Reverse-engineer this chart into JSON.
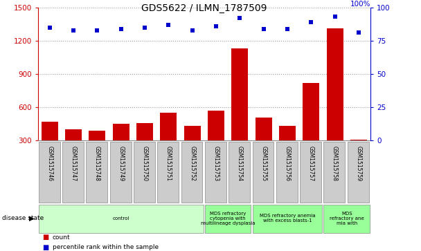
{
  "title": "GDS5622 / ILMN_1787509",
  "samples": [
    "GSM1515746",
    "GSM1515747",
    "GSM1515748",
    "GSM1515749",
    "GSM1515750",
    "GSM1515751",
    "GSM1515752",
    "GSM1515753",
    "GSM1515754",
    "GSM1515755",
    "GSM1515756",
    "GSM1515757",
    "GSM1515758",
    "GSM1515759"
  ],
  "counts": [
    470,
    400,
    390,
    450,
    460,
    550,
    430,
    570,
    1130,
    510,
    430,
    820,
    1310,
    310
  ],
  "percentiles": [
    85,
    83,
    83,
    84,
    85,
    87,
    83,
    86,
    92,
    84,
    84,
    89,
    93,
    81
  ],
  "ylim_left": [
    300,
    1500
  ],
  "ylim_right": [
    0,
    100
  ],
  "yticks_left": [
    300,
    600,
    900,
    1200,
    1500
  ],
  "yticks_right": [
    0,
    25,
    50,
    75,
    100
  ],
  "disease_groups": [
    {
      "label": "control",
      "start": 0,
      "end": 7,
      "color": "#ccffcc"
    },
    {
      "label": "MDS refractory\ncytopenia with\nmultilineage dysplasia",
      "start": 7,
      "end": 9,
      "color": "#99ff99"
    },
    {
      "label": "MDS refractory anemia\nwith excess blasts-1",
      "start": 9,
      "end": 12,
      "color": "#99ff99"
    },
    {
      "label": "MDS\nrefractory ane\nmia with",
      "start": 12,
      "end": 14,
      "color": "#99ff99"
    }
  ],
  "bar_color": "#cc0000",
  "dot_color": "#0000cc",
  "grid_color": "#999999",
  "bg_color": "#ffffff",
  "tick_bg": "#cccccc",
  "legend_count_color": "#cc0000",
  "legend_pct_color": "#0000cc",
  "pct_label": "100%"
}
